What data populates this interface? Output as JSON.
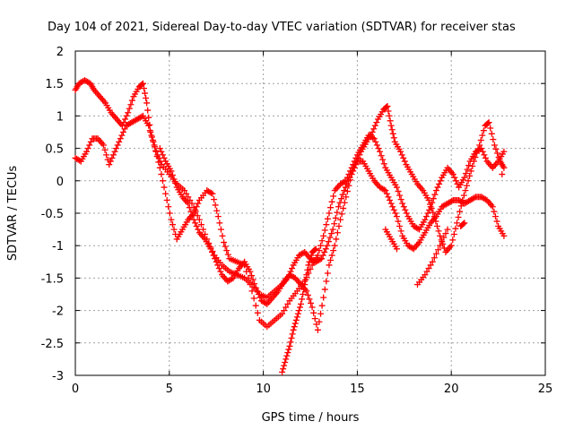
{
  "chart_data": {
    "type": "scatter",
    "title": "Day 104 of 2021, Sidereal Day-to-day VTEC variation (SDTVAR) for receiver stas",
    "xlabel": "GPS time / hours",
    "ylabel": "SDTVAR / TECUs",
    "xlim": [
      0,
      25
    ],
    "ylim": [
      -3,
      2
    ],
    "x_ticks": [
      0,
      5,
      10,
      15,
      20,
      25
    ],
    "y_ticks": [
      -3,
      -2.5,
      -2,
      -1.5,
      -1,
      -0.5,
      0,
      0.5,
      1,
      1.5,
      2
    ],
    "x_tick_labels": [
      "0",
      "5",
      "10",
      "15",
      "20",
      "25"
    ],
    "y_tick_labels": [
      "-3",
      "-2.5",
      "-2",
      "-1.5",
      "-1",
      "-0.5",
      "0",
      "0.5",
      "1",
      "1.5",
      "2"
    ],
    "grid": true,
    "marker": "plus",
    "color": "#ff0000",
    "series": [
      {
        "points": [
          [
            0.0,
            1.4
          ],
          [
            0.2,
            1.5
          ],
          [
            0.5,
            1.55
          ],
          [
            0.8,
            1.5
          ],
          [
            1.0,
            1.4
          ],
          [
            1.3,
            1.3
          ],
          [
            1.6,
            1.2
          ],
          [
            1.9,
            1.05
          ],
          [
            2.2,
            0.95
          ],
          [
            2.5,
            0.85
          ],
          [
            2.8,
            1.05
          ],
          [
            3.1,
            1.3
          ],
          [
            3.4,
            1.45
          ],
          [
            3.6,
            1.5
          ],
          [
            3.8,
            1.2
          ],
          [
            4.0,
            0.75
          ],
          [
            4.3,
            0.45
          ],
          [
            4.6,
            0.25
          ],
          [
            5.0,
            0.1
          ],
          [
            5.4,
            -0.05
          ],
          [
            5.8,
            -0.15
          ],
          [
            6.2,
            -0.35
          ],
          [
            6.6,
            -0.6
          ],
          [
            7.0,
            -0.9
          ],
          [
            7.4,
            -1.15
          ],
          [
            7.8,
            -1.3
          ],
          [
            8.2,
            -1.4
          ],
          [
            8.6,
            -1.45
          ],
          [
            9.0,
            -1.5
          ],
          [
            9.4,
            -1.6
          ],
          [
            9.8,
            -1.75
          ],
          [
            10.2,
            -1.8
          ],
          [
            10.6,
            -1.7
          ],
          [
            11.0,
            -1.6
          ],
          [
            11.3,
            -1.5
          ],
          [
            11.6,
            -1.3
          ],
          [
            11.9,
            -1.15
          ],
          [
            12.2,
            -1.1
          ],
          [
            12.5,
            -1.2
          ],
          [
            12.8,
            -1.25
          ],
          [
            13.1,
            -1.2
          ],
          [
            13.4,
            -1.0
          ],
          [
            13.7,
            -0.75
          ],
          [
            14.0,
            -0.4
          ],
          [
            14.3,
            -0.15
          ],
          [
            14.6,
            0.05
          ],
          [
            14.9,
            0.25
          ],
          [
            15.2,
            0.45
          ],
          [
            15.5,
            0.6
          ],
          [
            15.8,
            0.75
          ],
          [
            16.1,
            0.95
          ],
          [
            16.4,
            1.1
          ],
          [
            16.6,
            1.15
          ],
          [
            16.8,
            0.85
          ],
          [
            17.0,
            0.6
          ],
          [
            17.3,
            0.45
          ],
          [
            17.6,
            0.25
          ],
          [
            17.9,
            0.1
          ],
          [
            18.2,
            -0.05
          ],
          [
            18.5,
            -0.15
          ],
          [
            18.8,
            -0.3
          ],
          [
            19.1,
            -0.55
          ],
          [
            19.4,
            -0.85
          ],
          [
            19.7,
            -1.1
          ],
          [
            20.0,
            -1.0
          ],
          [
            20.3,
            -0.65
          ],
          [
            20.6,
            -0.3
          ],
          [
            20.9,
            0.0
          ],
          [
            21.2,
            0.3
          ],
          [
            21.5,
            0.55
          ],
          [
            21.8,
            0.85
          ],
          [
            22.0,
            0.9
          ],
          [
            22.3,
            0.55
          ],
          [
            22.6,
            0.3
          ],
          [
            22.8,
            0.2
          ]
        ]
      },
      {
        "points": [
          [
            0.0,
            0.35
          ],
          [
            0.3,
            0.3
          ],
          [
            0.6,
            0.45
          ],
          [
            0.9,
            0.65
          ],
          [
            1.2,
            0.65
          ],
          [
            1.5,
            0.55
          ],
          [
            1.8,
            0.25
          ],
          [
            2.1,
            0.45
          ],
          [
            2.4,
            0.65
          ],
          [
            2.7,
            0.85
          ],
          [
            3.0,
            0.9
          ],
          [
            3.3,
            0.95
          ],
          [
            3.6,
            1.0
          ],
          [
            3.9,
            0.85
          ],
          [
            4.2,
            0.55
          ],
          [
            4.5,
            0.2
          ],
          [
            4.8,
            -0.2
          ],
          [
            5.1,
            -0.6
          ],
          [
            5.4,
            -0.9
          ],
          [
            5.7,
            -0.75
          ],
          [
            6.0,
            -0.6
          ],
          [
            6.3,
            -0.5
          ],
          [
            6.6,
            -0.3
          ],
          [
            7.0,
            -0.15
          ],
          [
            7.3,
            -0.2
          ],
          [
            7.6,
            -0.55
          ],
          [
            7.9,
            -0.95
          ],
          [
            8.2,
            -1.2
          ],
          [
            8.6,
            -1.25
          ],
          [
            9.0,
            -1.3
          ],
          [
            9.4,
            -1.7
          ],
          [
            9.8,
            -2.15
          ],
          [
            10.2,
            -2.25
          ],
          [
            10.6,
            -2.15
          ],
          [
            11.0,
            -2.05
          ],
          [
            11.4,
            -1.85
          ],
          [
            11.8,
            -1.7
          ],
          [
            12.2,
            -1.55
          ],
          [
            12.6,
            -1.3
          ],
          [
            12.9,
            -1.15
          ],
          [
            13.2,
            -0.85
          ],
          [
            13.5,
            -0.5
          ],
          [
            13.8,
            -0.15
          ],
          [
            14.1,
            -0.05
          ],
          [
            14.4,
            0.0
          ],
          [
            14.7,
            0.2
          ],
          [
            15.0,
            0.4
          ],
          [
            15.3,
            0.55
          ],
          [
            15.6,
            0.7
          ],
          [
            15.9,
            0.65
          ],
          [
            16.2,
            0.45
          ],
          [
            16.5,
            0.2
          ],
          [
            16.8,
            0.05
          ],
          [
            17.1,
            -0.1
          ],
          [
            17.4,
            -0.35
          ],
          [
            17.7,
            -0.55
          ],
          [
            18.0,
            -0.7
          ],
          [
            18.3,
            -0.75
          ],
          [
            18.6,
            -0.6
          ],
          [
            18.9,
            -0.4
          ],
          [
            19.2,
            -0.15
          ],
          [
            19.5,
            0.05
          ],
          [
            19.8,
            0.2
          ],
          [
            20.1,
            0.1
          ],
          [
            20.4,
            -0.1
          ],
          [
            20.7,
            0.05
          ],
          [
            21.0,
            0.3
          ],
          [
            21.3,
            0.45
          ],
          [
            21.6,
            0.5
          ],
          [
            21.9,
            0.3
          ],
          [
            22.2,
            0.2
          ],
          [
            22.5,
            0.3
          ],
          [
            22.8,
            0.45
          ]
        ]
      },
      {
        "points": [
          [
            4.5,
            0.5
          ],
          [
            4.8,
            0.3
          ],
          [
            5.1,
            0.15
          ],
          [
            5.4,
            -0.1
          ],
          [
            5.7,
            -0.25
          ],
          [
            6.0,
            -0.35
          ],
          [
            6.3,
            -0.6
          ],
          [
            6.6,
            -0.8
          ],
          [
            6.9,
            -0.9
          ],
          [
            7.2,
            -1.05
          ],
          [
            7.5,
            -1.25
          ],
          [
            7.8,
            -1.45
          ],
          [
            8.1,
            -1.55
          ],
          [
            8.4,
            -1.5
          ],
          [
            8.7,
            -1.35
          ],
          [
            9.0,
            -1.25
          ],
          [
            9.3,
            -1.4
          ],
          [
            9.6,
            -1.65
          ],
          [
            9.9,
            -1.85
          ],
          [
            10.2,
            -1.9
          ],
          [
            10.5,
            -1.8
          ],
          [
            10.8,
            -1.7
          ],
          [
            11.1,
            -1.55
          ],
          [
            11.4,
            -1.45
          ],
          [
            11.7,
            -1.5
          ],
          [
            12.0,
            -1.6
          ],
          [
            12.3,
            -1.7
          ],
          [
            12.6,
            -1.95
          ],
          [
            12.9,
            -2.3
          ],
          [
            13.2,
            -1.8
          ],
          [
            13.5,
            -1.3
          ],
          [
            13.8,
            -1.0
          ],
          [
            14.1,
            -0.6
          ],
          [
            14.4,
            -0.25
          ],
          [
            14.7,
            0.1
          ],
          [
            15.0,
            0.3
          ],
          [
            15.3,
            0.3
          ],
          [
            15.6,
            0.15
          ],
          [
            15.9,
            0.0
          ],
          [
            16.2,
            -0.1
          ],
          [
            16.5,
            -0.15
          ],
          [
            16.8,
            -0.35
          ],
          [
            17.1,
            -0.55
          ],
          [
            17.4,
            -0.85
          ],
          [
            17.7,
            -1.0
          ],
          [
            18.0,
            -1.05
          ],
          [
            18.3,
            -0.95
          ],
          [
            18.6,
            -0.8
          ],
          [
            18.9,
            -0.65
          ],
          [
            19.2,
            -0.55
          ],
          [
            19.5,
            -0.4
          ],
          [
            19.8,
            -0.35
          ],
          [
            20.1,
            -0.3
          ],
          [
            20.4,
            -0.3
          ],
          [
            20.7,
            -0.35
          ],
          [
            21.0,
            -0.3
          ],
          [
            21.3,
            -0.25
          ],
          [
            21.6,
            -0.25
          ],
          [
            21.9,
            -0.3
          ],
          [
            22.2,
            -0.4
          ],
          [
            22.5,
            -0.7
          ],
          [
            22.8,
            -0.85
          ]
        ]
      },
      {
        "points": [
          [
            11.0,
            -2.95
          ],
          [
            11.2,
            -2.75
          ],
          [
            11.4,
            -2.55
          ],
          [
            11.6,
            -2.3
          ],
          [
            11.8,
            -2.1
          ],
          [
            12.0,
            -1.9
          ],
          [
            12.2,
            -1.6
          ],
          [
            12.4,
            -1.3
          ],
          [
            12.6,
            -1.1
          ],
          [
            12.8,
            -1.05
          ],
          [
            16.5,
            -0.75
          ],
          [
            16.8,
            -0.9
          ],
          [
            17.1,
            -1.05
          ],
          [
            18.2,
            -1.6
          ],
          [
            18.6,
            -1.45
          ],
          [
            19.0,
            -1.25
          ],
          [
            19.4,
            -1.0
          ],
          [
            19.8,
            -0.75
          ],
          [
            20.5,
            -0.7
          ],
          [
            20.7,
            -0.65
          ],
          [
            22.7,
            0.1
          ]
        ]
      }
    ]
  }
}
